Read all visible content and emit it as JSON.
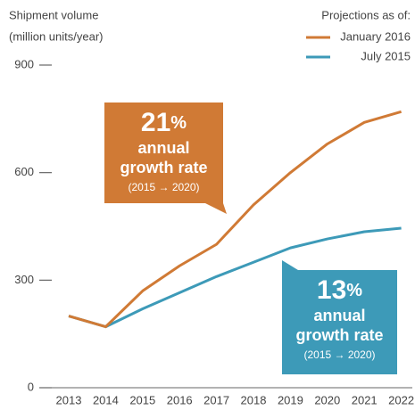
{
  "chart_data": {
    "type": "line",
    "ylabel": [
      "Shipment volume",
      "(million units/year)"
    ],
    "legend_title": "Projections as of:",
    "categories": [
      "2013",
      "2014",
      "2015",
      "2016",
      "2017",
      "2018",
      "2019",
      "2020",
      "2021",
      "2022"
    ],
    "series": [
      {
        "name": "January 2016",
        "color": "#d07a35",
        "values": [
          200,
          170,
          270,
          340,
          400,
          510,
          600,
          680,
          740,
          770
        ]
      },
      {
        "name": "July 2015",
        "color": "#3d9ab8",
        "values": [
          200,
          170,
          220,
          265,
          310,
          350,
          390,
          415,
          435,
          445
        ]
      }
    ],
    "ylim": [
      0,
      900
    ],
    "yticks": [
      0,
      300,
      600,
      900
    ],
    "grid": false,
    "annotations": [
      {
        "big": "21",
        "suffix": "%",
        "line1": "annual",
        "line2": "growth rate",
        "range": "(2015 → 2020)",
        "color": "#d07a35"
      },
      {
        "big": "13",
        "suffix": "%",
        "line1": "annual",
        "line2": "growth rate",
        "range": "(2015 → 2020)",
        "color": "#3d9ab8"
      }
    ]
  }
}
